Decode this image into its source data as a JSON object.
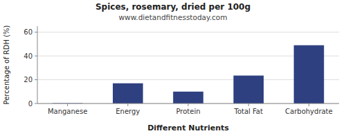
{
  "chart_data": {
    "type": "bar",
    "title": "Spices, rosemary, dried per 100g",
    "subtitle": "www.dietandfitnesstoday.com",
    "x_label": "Different Nutrients",
    "y_label": "Percentage of RDH (%)",
    "categories": [
      "Manganese",
      "Energy",
      "Protein",
      "Total Fat",
      "Carbohydrate"
    ],
    "values": [
      0.3,
      17.0,
      10.0,
      23.5,
      49.0
    ],
    "color": "#2e4080",
    "ylim": [
      0,
      65
    ],
    "yticks": [
      0,
      20,
      40,
      60
    ],
    "grid": true
  }
}
